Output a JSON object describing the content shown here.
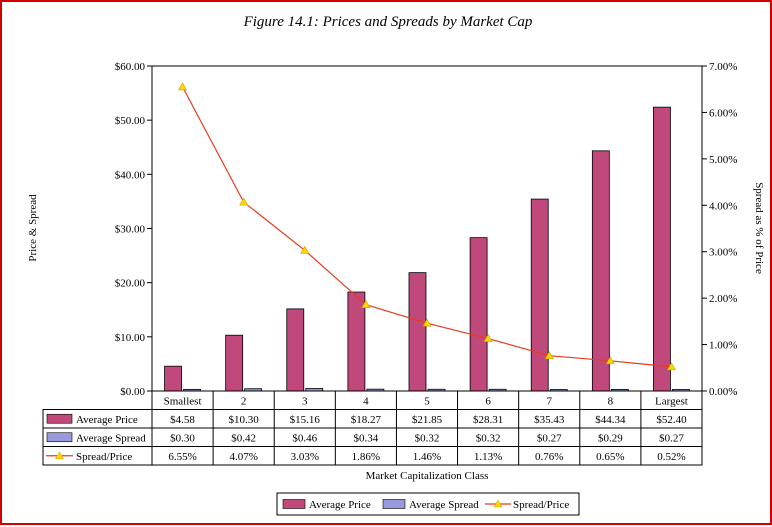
{
  "chart_data": {
    "type": "bar",
    "title": "Figure 14.1: Prices and Spreads by Market Cap",
    "xlabel": "Market Capitalization Class",
    "ylabel": "Price & Spread",
    "ylabel_right": "Spread as % of Price",
    "categories": [
      "Smallest",
      "2",
      "3",
      "4",
      "5",
      "6",
      "7",
      "8",
      "Largest"
    ],
    "ylim": [
      0,
      60
    ],
    "ylim_right": [
      0,
      7
    ],
    "y_ticks": [
      "$0.00",
      "$10.00",
      "$20.00",
      "$30.00",
      "$40.00",
      "$50.00",
      "$60.00"
    ],
    "y_right_ticks": [
      "0.00%",
      "1.00%",
      "2.00%",
      "3.00%",
      "4.00%",
      "5.00%",
      "6.00%",
      "7.00%"
    ],
    "series": [
      {
        "name": "Average Price",
        "kind": "bar",
        "axis": "left",
        "color": "#c0487a",
        "values": [
          4.58,
          10.3,
          15.16,
          18.27,
          21.85,
          28.31,
          35.43,
          44.34,
          52.4
        ],
        "labels": [
          "$4.58",
          "$10.30",
          "$15.16",
          "$18.27",
          "$21.85",
          "$28.31",
          "$35.43",
          "$44.34",
          "$52.40"
        ]
      },
      {
        "name": "Average Spread",
        "kind": "bar",
        "axis": "left",
        "color": "#9999dd",
        "values": [
          0.3,
          0.42,
          0.46,
          0.34,
          0.32,
          0.32,
          0.27,
          0.29,
          0.27
        ],
        "labels": [
          "$0.30",
          "$0.42",
          "$0.46",
          "$0.34",
          "$0.32",
          "$0.32",
          "$0.27",
          "$0.29",
          "$0.27"
        ]
      },
      {
        "name": "Spread/Price",
        "kind": "line",
        "axis": "right",
        "color": "#e83a1c",
        "marker_color": "#ffd700",
        "values": [
          6.55,
          4.07,
          3.03,
          1.86,
          1.46,
          1.13,
          0.76,
          0.65,
          0.52
        ],
        "labels": [
          "6.55%",
          "4.07%",
          "3.03%",
          "1.86%",
          "1.46%",
          "1.13%",
          "0.76%",
          "0.65%",
          "0.52%"
        ]
      }
    ],
    "data_table": true,
    "grid": false,
    "legend_position": "bottom-center"
  }
}
